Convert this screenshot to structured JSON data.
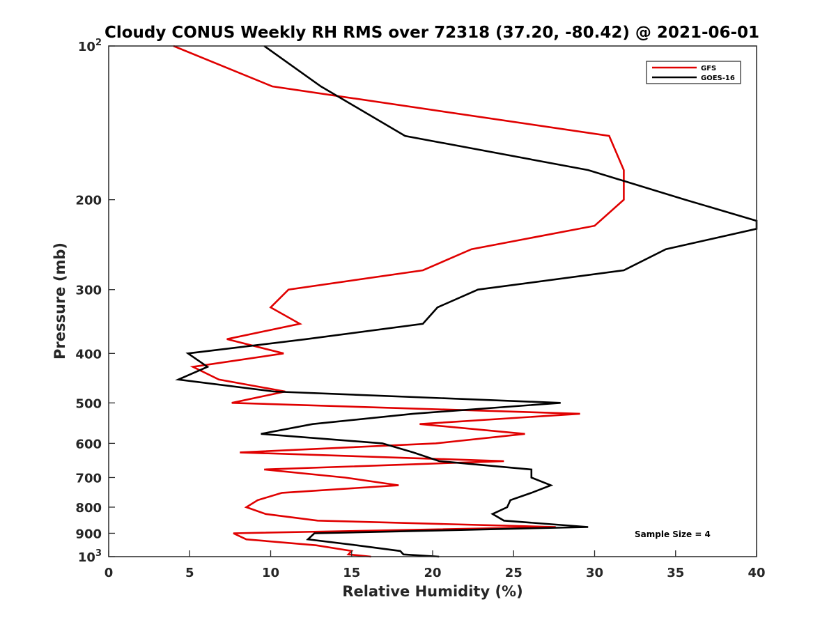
{
  "chart_data": {
    "type": "line",
    "title": "Cloudy CONUS Weekly RH RMS over 72318 (37.20, -80.42) @ 2021-06-01",
    "xlabel": "Relative Humidity (%)",
    "ylabel": "Pressure (mb)",
    "xlim": [
      0,
      40
    ],
    "ylim": [
      100,
      1000
    ],
    "yscale": "log",
    "yreversed": true,
    "grid": false,
    "legend_position": "top-right",
    "x_ticks": [
      {
        "value": 0,
        "label": "0"
      },
      {
        "value": 5,
        "label": "5"
      },
      {
        "value": 10,
        "label": "10"
      },
      {
        "value": 15,
        "label": "15"
      },
      {
        "value": 20,
        "label": "20"
      },
      {
        "value": 25,
        "label": "25"
      },
      {
        "value": 30,
        "label": "30"
      },
      {
        "value": 35,
        "label": "35"
      },
      {
        "value": 40,
        "label": "40"
      }
    ],
    "y_ticks": [
      {
        "value": 100,
        "base": "10",
        "sup": "2"
      },
      {
        "value": 200,
        "base": "200",
        "sup": ""
      },
      {
        "value": 300,
        "base": "300",
        "sup": ""
      },
      {
        "value": 400,
        "base": "400",
        "sup": ""
      },
      {
        "value": 500,
        "base": "500",
        "sup": ""
      },
      {
        "value": 600,
        "base": "600",
        "sup": ""
      },
      {
        "value": 700,
        "base": "700",
        "sup": ""
      },
      {
        "value": 800,
        "base": "800",
        "sup": ""
      },
      {
        "value": 900,
        "base": "900",
        "sup": ""
      },
      {
        "value": 1000,
        "base": "10",
        "sup": "3"
      }
    ],
    "annotation": "Sample Size = 4",
    "series": [
      {
        "name": "GFS",
        "color": "#e00000",
        "points": [
          [
            4.0,
            100
          ],
          [
            10.1,
            120
          ],
          [
            30.9,
            150
          ],
          [
            31.8,
            175
          ],
          [
            31.8,
            200
          ],
          [
            30.0,
            225
          ],
          [
            22.4,
            250
          ],
          [
            19.4,
            275
          ],
          [
            11.1,
            300
          ],
          [
            10.0,
            325
          ],
          [
            11.8,
            350
          ],
          [
            7.3,
            375
          ],
          [
            10.8,
            400
          ],
          [
            5.2,
            425
          ],
          [
            6.8,
            450
          ],
          [
            10.9,
            475
          ],
          [
            7.6,
            500
          ],
          [
            29.1,
            525
          ],
          [
            19.2,
            550
          ],
          [
            25.7,
            575
          ],
          [
            20.2,
            600
          ],
          [
            8.1,
            625
          ],
          [
            24.4,
            650
          ],
          [
            9.6,
            675
          ],
          [
            14.6,
            700
          ],
          [
            17.9,
            725
          ],
          [
            10.7,
            750
          ],
          [
            9.2,
            775
          ],
          [
            8.5,
            800
          ],
          [
            9.7,
            825
          ],
          [
            12.9,
            850
          ],
          [
            27.6,
            875
          ],
          [
            7.7,
            900
          ],
          [
            8.5,
            925
          ],
          [
            12.8,
            950
          ],
          [
            15.0,
            975
          ],
          [
            14.8,
            990
          ],
          [
            16.2,
            1000
          ]
        ]
      },
      {
        "name": "GOES-16",
        "color": "#000000",
        "points": [
          [
            9.6,
            100
          ],
          [
            13.1,
            120
          ],
          [
            18.3,
            150
          ],
          [
            29.6,
            175
          ],
          [
            35.6,
            200
          ],
          [
            40.0,
            220
          ],
          [
            40.0,
            228
          ],
          [
            34.4,
            250
          ],
          [
            31.8,
            275
          ],
          [
            22.8,
            300
          ],
          [
            20.3,
            325
          ],
          [
            19.4,
            350
          ],
          [
            12.2,
            375
          ],
          [
            4.9,
            400
          ],
          [
            6.1,
            425
          ],
          [
            4.3,
            450
          ],
          [
            10.2,
            475
          ],
          [
            27.9,
            500
          ],
          [
            18.8,
            525
          ],
          [
            12.6,
            550
          ],
          [
            9.4,
            575
          ],
          [
            16.9,
            600
          ],
          [
            18.8,
            625
          ],
          [
            20.4,
            650
          ],
          [
            26.1,
            675
          ],
          [
            26.1,
            700
          ],
          [
            27.3,
            725
          ],
          [
            26.1,
            750
          ],
          [
            24.8,
            775
          ],
          [
            24.6,
            800
          ],
          [
            23.7,
            825
          ],
          [
            24.4,
            850
          ],
          [
            29.6,
            875
          ],
          [
            12.7,
            900
          ],
          [
            12.3,
            925
          ],
          [
            15.3,
            950
          ],
          [
            18.0,
            975
          ],
          [
            18.2,
            990
          ],
          [
            20.4,
            1000
          ]
        ]
      }
    ]
  }
}
